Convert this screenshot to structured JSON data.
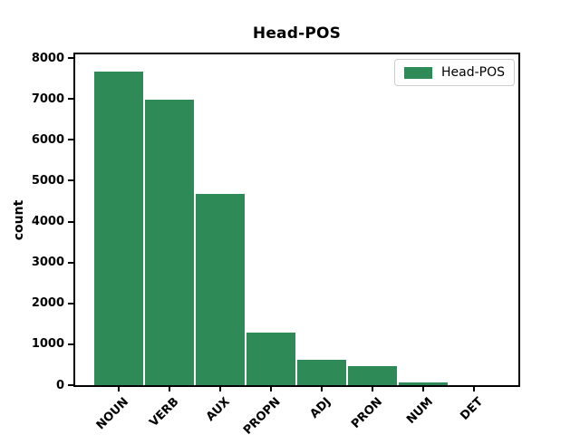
{
  "chart_data": {
    "type": "bar",
    "title": "Head-POS",
    "xlabel": "",
    "ylabel": "count",
    "categories": [
      "NOUN",
      "VERB",
      "AUX",
      "PROPN",
      "ADJ",
      "PRON",
      "NUM",
      "DET"
    ],
    "values": [
      7700,
      7000,
      4700,
      1300,
      650,
      490,
      80,
      15
    ],
    "series_name": "Head-POS",
    "yticks": [
      0,
      1000,
      2000,
      3000,
      4000,
      5000,
      6000,
      7000,
      8000
    ],
    "ylim": [
      0,
      8090
    ],
    "grid": false,
    "xtick_rotation_deg": 45,
    "legend": {
      "label": "Head-POS",
      "position": "upper-right"
    },
    "colors": {
      "bar_fill": "#2e8b57",
      "bar_edge": "#ffffff",
      "axis_line": "#000000",
      "text": "#000000",
      "legend_border": "#cccccc",
      "background": "#ffffff"
    }
  }
}
